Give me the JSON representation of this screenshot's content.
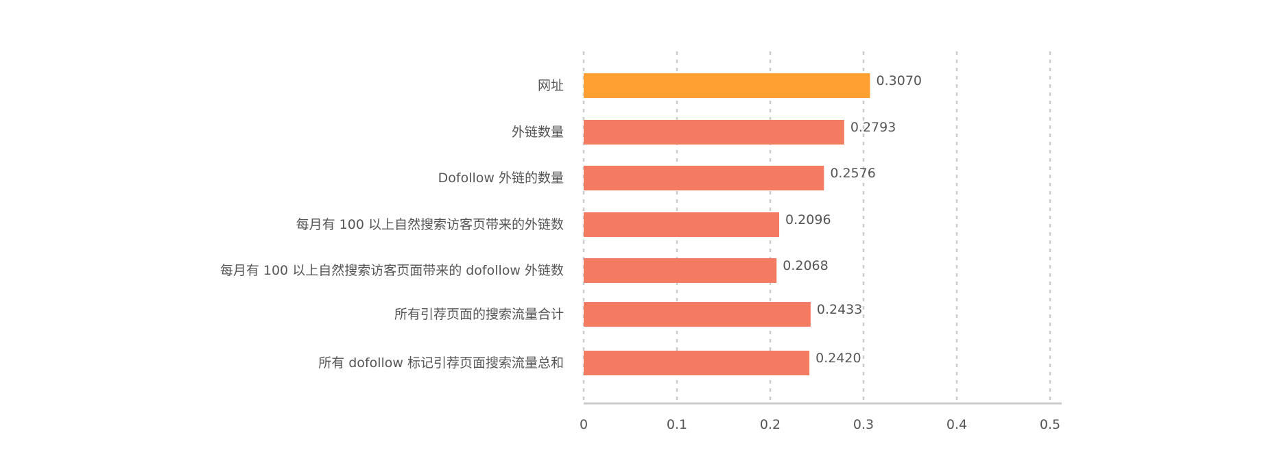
{
  "chart_data": {
    "type": "bar",
    "orientation": "horizontal",
    "categories": [
      "网址",
      "外链数量",
      "Dofollow 外链的数量",
      "每月有 100 以上自然搜索访客页带来的外链数",
      "每月有 100 以上自然搜索访客页面带来的 dofollow 外链数",
      "所有引荐页面的搜索流量合计",
      "所有 dofollow 标记引荐页面搜索流量总和"
    ],
    "values": [
      0.307,
      0.2793,
      0.2576,
      0.2096,
      0.2068,
      0.2433,
      0.242
    ],
    "value_labels": [
      "0.3070",
      "0.2793",
      "0.2576",
      "0.2096",
      "0.2068",
      "0.2433",
      "0.2420"
    ],
    "bar_colors": [
      "#ffa033",
      "#f27b61",
      "#f27b61",
      "#f27b61",
      "#f27b61",
      "#f27b61",
      "#f27b61"
    ],
    "xlim": [
      0,
      0.5
    ],
    "xticks": [
      0,
      0.1,
      0.2,
      0.3,
      0.4,
      0.5
    ],
    "xtick_labels": [
      "0",
      "0.1",
      "0.2",
      "0.3",
      "0.4",
      "0.5"
    ],
    "grid": true,
    "grid_color": "#cccccc",
    "text_color": "#555555",
    "title": "",
    "xlabel": "",
    "ylabel": ""
  }
}
